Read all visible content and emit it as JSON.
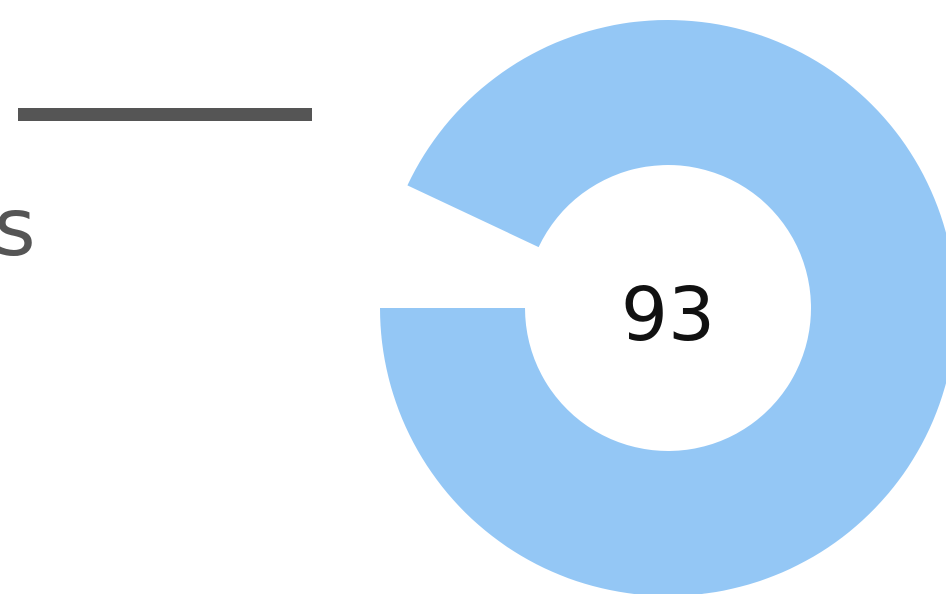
{
  "heading": {
    "text_fragment": "s"
  },
  "gauge": {
    "value": 93,
    "value_label": "93",
    "filled_fraction": 0.93,
    "color": "#94c7f5",
    "gap_color": "#ffffff"
  }
}
